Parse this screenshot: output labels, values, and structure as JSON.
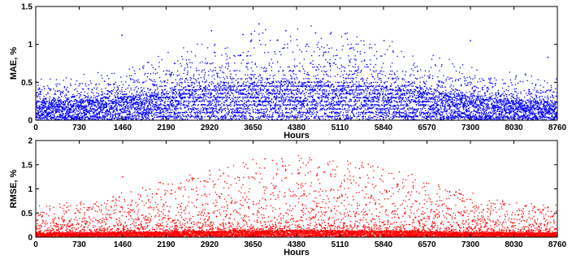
{
  "chart_data": [
    {
      "type": "scatter",
      "title": "",
      "xlabel": "Hours",
      "ylabel": "MAE, %",
      "xlim": [
        0,
        8760
      ],
      "ylim": [
        0,
        1.5
      ],
      "xticks": [
        "0",
        "730",
        "1460",
        "2190",
        "2920",
        "3650",
        "4380",
        "5110",
        "5840",
        "6570",
        "7300",
        "8030",
        "8760"
      ],
      "yticks": [
        "0",
        "0.5",
        "1",
        "1.5"
      ],
      "grid": false,
      "series": [
        {
          "color": "#0000ff",
          "n_points": 8760,
          "distribution": "dense noisy band, mostly 0 to 0.5, rising toward the middle of the year",
          "peak_hours": 4380,
          "notable_points": [
            [
              1450,
              1.12
            ],
            [
              2950,
              1.18
            ],
            [
              3480,
              1.13
            ],
            [
              3620,
              1.14
            ],
            [
              3750,
              1.27
            ],
            [
              4200,
              1.18
            ],
            [
              4700,
              1.15
            ],
            [
              4950,
              1.14
            ],
            [
              5200,
              1.14
            ],
            [
              5850,
              1.05
            ],
            [
              7300,
              1.05
            ],
            [
              8600,
              0.83
            ]
          ]
        }
      ]
    },
    {
      "type": "scatter",
      "title": "",
      "xlabel": "Hours",
      "ylabel": "RMSE, %",
      "xlim": [
        0,
        8760
      ],
      "ylim": [
        0,
        2
      ],
      "xticks": [
        "0",
        "730",
        "1460",
        "2190",
        "2920",
        "3650",
        "4380",
        "5110",
        "5840",
        "6570",
        "7300",
        "8030",
        "8760"
      ],
      "yticks": [
        "0",
        "0.5",
        "1",
        "1.5",
        "2"
      ],
      "grid": false,
      "series": [
        {
          "color": "#ff0000",
          "n_points": 8760,
          "distribution": "dense band near 0 to 0.3 with sparse outliers up to 1.6, more outliers mid-year",
          "peak_hours": 4380,
          "notable_points": [
            [
              1460,
              1.25
            ],
            [
              2920,
              1.38
            ],
            [
              3150,
              1.32
            ],
            [
              3700,
              1.32
            ],
            [
              3850,
              1.62
            ],
            [
              4200,
              1.4
            ],
            [
              4950,
              1.3
            ],
            [
              5300,
              1.12
            ],
            [
              7300,
              0.78
            ],
            [
              8600,
              0.62
            ]
          ]
        }
      ]
    }
  ]
}
